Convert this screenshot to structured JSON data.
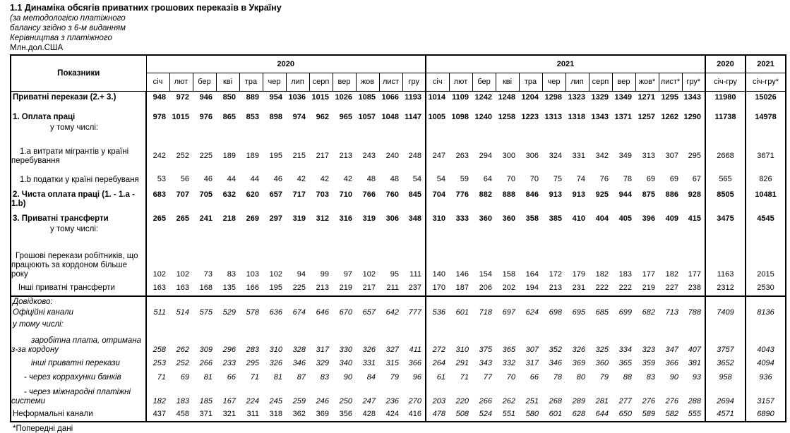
{
  "title": "1.1 Динаміка обсягів приватних грошових переказів в Україну",
  "subtitle_lines": [
    "(за методологією платіжного",
    "балансу згідно з 6-м виданням",
    "Керівництва з платіжного"
  ],
  "units": "Млн.дол.США",
  "footnote": "*Попередні дані",
  "table": {
    "col_header": "Показники",
    "year2020": "2020",
    "year2021": "2021",
    "months2020": [
      "січ",
      "лют",
      "бер",
      "кві",
      "тра",
      "чер",
      "лип",
      "серп",
      "вер",
      "жов",
      "лист",
      "гру"
    ],
    "months2021": [
      "січ",
      "лют",
      "бер",
      "кві",
      "тра",
      "чер",
      "лип",
      "серп",
      "вер",
      "жов*",
      "лист*",
      "гру*"
    ],
    "total2020_header": {
      "year": "2020",
      "period": "січ-гру"
    },
    "total2021_header": {
      "year": "2021",
      "period": "січ-гру*"
    },
    "rows": [
      {
        "label": "Приватні перекази (2.+ 3.)",
        "style": "bold",
        "indent": 0,
        "v2020": [
          948,
          972,
          946,
          850,
          889,
          954,
          1036,
          1015,
          1026,
          1085,
          1066,
          1193
        ],
        "v2021": [
          1014,
          1109,
          1242,
          1248,
          1204,
          1298,
          1323,
          1329,
          1349,
          1271,
          1295,
          1343
        ],
        "t2020": 11980,
        "t2021": 15026
      },
      {
        "label": "1. Оплата праці",
        "sub": "у тому числі:",
        "style": "bold",
        "indent": 0,
        "v2020": [
          978,
          1015,
          976,
          865,
          853,
          898,
          974,
          962,
          965,
          1057,
          1048,
          1147
        ],
        "v2021": [
          1005,
          1098,
          1240,
          1258,
          1223,
          1313,
          1318,
          1343,
          1371,
          1257,
          1262,
          1290
        ],
        "t2020": 11738,
        "t2021": 14978
      },
      {
        "label": "1.а  витрати мігрантів у країні перебування",
        "style": "normal",
        "indent": 1,
        "v2020": [
          242,
          252,
          225,
          189,
          189,
          195,
          215,
          217,
          213,
          243,
          240,
          248
        ],
        "v2021": [
          247,
          263,
          294,
          300,
          306,
          324,
          331,
          342,
          349,
          313,
          307,
          295
        ],
        "t2020": 2668,
        "t2021": 3671
      },
      {
        "label": "1.b  податки у країні перебуваня",
        "style": "normal",
        "indent": 1,
        "v2020": [
          53,
          56,
          46,
          44,
          44,
          46,
          42,
          42,
          42,
          48,
          48,
          54
        ],
        "v2021": [
          54,
          59,
          64,
          70,
          70,
          75,
          74,
          76,
          78,
          69,
          69,
          67
        ],
        "t2020": 565,
        "t2021": 826
      },
      {
        "label": "2. Чиста оплата праці  (1. - 1.а - 1.b)",
        "style": "bold",
        "indent": 0,
        "v2020": [
          683,
          707,
          705,
          632,
          620,
          657,
          717,
          703,
          710,
          766,
          760,
          845
        ],
        "v2021": [
          704,
          776,
          882,
          888,
          846,
          913,
          913,
          925,
          944,
          875,
          886,
          928
        ],
        "t2020": 8505,
        "t2021": 10481
      },
      {
        "label": "3. Приватні трансферти",
        "sub": "у тому числі:",
        "style": "bold",
        "indent": 0,
        "v2020": [
          265,
          265,
          241,
          218,
          269,
          297,
          319,
          312,
          316,
          319,
          306,
          348
        ],
        "v2021": [
          310,
          333,
          360,
          360,
          358,
          385,
          410,
          404,
          405,
          396,
          409,
          415
        ],
        "t2020": 3475,
        "t2021": 4545
      },
      {
        "label": "Грошові перекази робітників, що працюють за кордоном більше року",
        "style": "normal",
        "indent": 2,
        "v2020": [
          102,
          102,
          73,
          83,
          103,
          102,
          94,
          99,
          97,
          102,
          95,
          111
        ],
        "v2021": [
          140,
          146,
          154,
          158,
          164,
          172,
          179,
          182,
          183,
          177,
          182,
          177
        ],
        "t2020": 1163,
        "t2021": 2015
      },
      {
        "label": "Інші приватні  трансферти",
        "style": "normal",
        "indent": 5,
        "v2020": [
          163,
          163,
          168,
          135,
          166,
          195,
          225,
          213,
          219,
          217,
          211,
          237
        ],
        "v2021": [
          170,
          187,
          206,
          202,
          194,
          213,
          231,
          222,
          222,
          219,
          227,
          238
        ],
        "t2020": 2312,
        "t2021": 2530
      },
      {
        "label": "Довідково:",
        "style": "italic",
        "indent": 0,
        "sep": true
      },
      {
        "label": "Офіційні канали",
        "style": "italic",
        "indent": 0,
        "v2020": [
          511,
          514,
          575,
          529,
          578,
          636,
          674,
          646,
          670,
          657,
          642,
          777
        ],
        "v2021": [
          536,
          601,
          718,
          697,
          624,
          698,
          695,
          685,
          699,
          682,
          713,
          788
        ],
        "t2020": 7409,
        "t2021": 8136
      },
      {
        "label": "у тому числі:",
        "style": "italic",
        "indent": 0
      },
      {
        "label": "заробітна плата, отримана з-за кордону",
        "style": "italic",
        "indent": 3,
        "v2020": [
          258,
          262,
          309,
          296,
          283,
          310,
          328,
          317,
          330,
          326,
          327,
          411
        ],
        "v2021": [
          272,
          310,
          375,
          365,
          307,
          352,
          326,
          325,
          334,
          323,
          347,
          407
        ],
        "t2020": 3757,
        "t2021": 4043
      },
      {
        "label": "інші приватні перекази",
        "style": "italic",
        "indent": 3,
        "v2020": [
          253,
          252,
          266,
          233,
          295,
          326,
          346,
          329,
          340,
          331,
          315,
          366
        ],
        "v2021": [
          264,
          291,
          343,
          332,
          317,
          346,
          369,
          360,
          365,
          359,
          366,
          381
        ],
        "t2020": 3652,
        "t2021": 4094
      },
      {
        "label": "- через коррахунки банків",
        "style": "italic",
        "indent": 4,
        "v2020": [
          71,
          69,
          81,
          66,
          71,
          81,
          87,
          83,
          90,
          84,
          79,
          96
        ],
        "v2021": [
          61,
          71,
          77,
          70,
          66,
          78,
          80,
          79,
          88,
          83,
          90,
          93
        ],
        "t2020": 958,
        "t2021": 936
      },
      {
        "label": "- через  міжнародні платіжні системи",
        "style": "italic",
        "indent": 4,
        "v2020": [
          182,
          183,
          185,
          167,
          224,
          245,
          259,
          246,
          250,
          247,
          236,
          270
        ],
        "v2021": [
          203,
          220,
          266,
          262,
          251,
          268,
          289,
          281,
          277,
          276,
          276,
          288
        ],
        "t2020": 2694,
        "t2021": 3157
      },
      {
        "label": "Неформальні канали",
        "style": "normal",
        "style2021": "italic",
        "indent": 0,
        "v2020": [
          437,
          458,
          371,
          321,
          311,
          318,
          362,
          369,
          356,
          428,
          424,
          416
        ],
        "v2021": [
          478,
          508,
          524,
          551,
          580,
          601,
          628,
          644,
          650,
          589,
          582,
          555
        ],
        "t2020": 4571,
        "t2021": 6890
      }
    ]
  }
}
